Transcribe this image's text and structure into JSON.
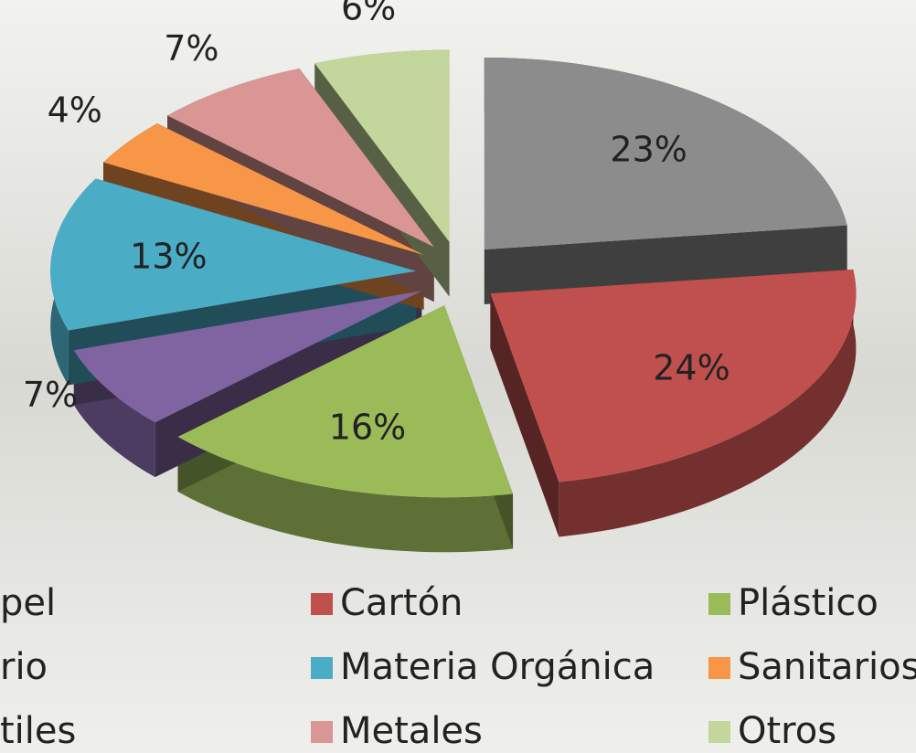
{
  "chart_data": {
    "type": "pie",
    "categories": [
      "pel",
      "Cartón",
      "Plástico",
      "rio",
      "Materia Orgánica",
      "Sanitarios",
      "tiles",
      "Metales",
      "Otros"
    ],
    "values": [
      23,
      24,
      16,
      7,
      13,
      4,
      null,
      7,
      6
    ],
    "value_labels": [
      "23%",
      "24%",
      "16%",
      "7%",
      "13%",
      "4%",
      null,
      "7%",
      "6%"
    ],
    "colors": [
      "#8c8c8c",
      "#c0504d",
      "#9bbb59",
      "#8064a2",
      "#4bacc6",
      "#f79646",
      "#2c4d75",
      "#d99694",
      "#c3d69b"
    ]
  }
}
